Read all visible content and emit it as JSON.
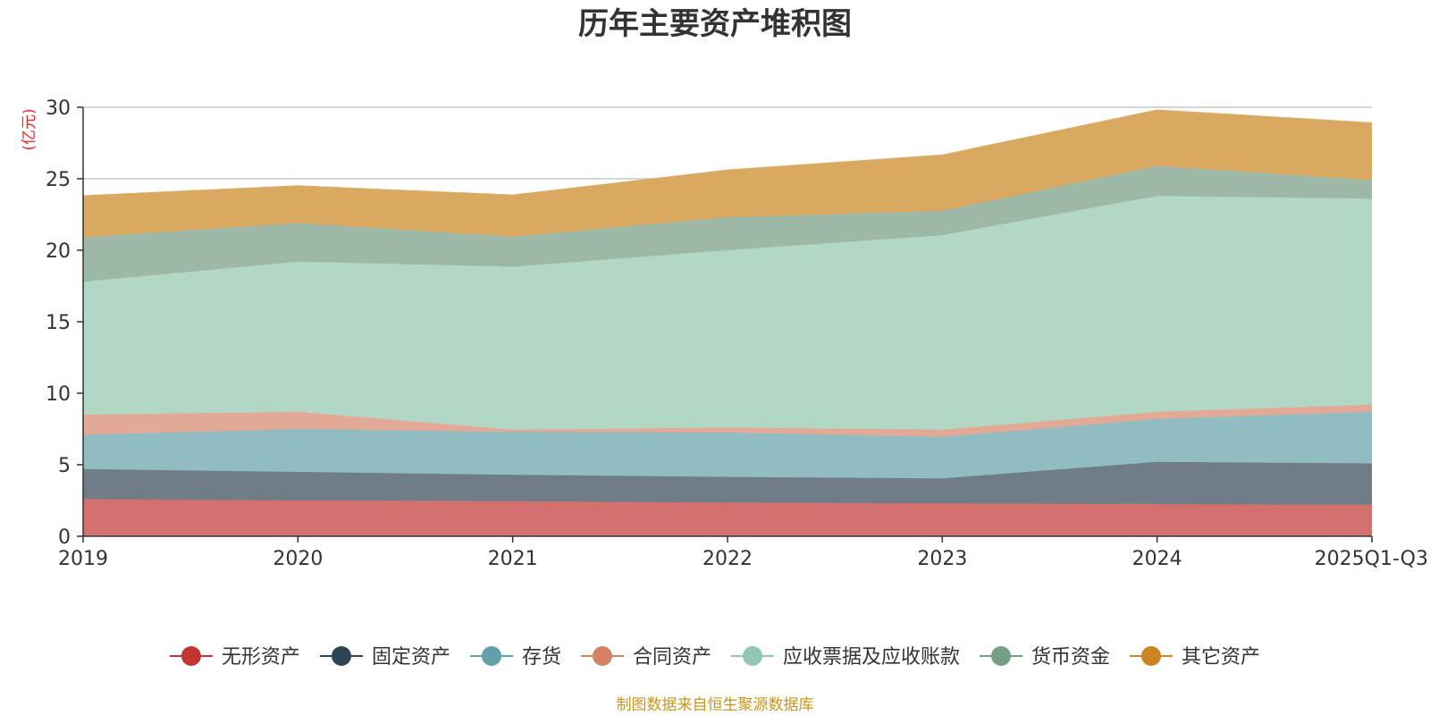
{
  "chart_data": {
    "type": "area",
    "stacked": true,
    "title": "历年主要资产堆积图",
    "unit_label": "(亿元)",
    "categories": [
      "2019",
      "2020",
      "2021",
      "2022",
      "2023",
      "2024",
      "2025Q1-Q3"
    ],
    "ylim": [
      0,
      30
    ],
    "yticks": [
      0,
      5,
      10,
      15,
      20,
      25,
      30
    ],
    "grid": true,
    "legend_position": "bottom",
    "series": [
      {
        "name": "无形资产",
        "color": "#c23531",
        "fill": "#d4706e",
        "values": [
          2.6,
          2.5,
          2.45,
          2.35,
          2.3,
          2.25,
          2.2
        ]
      },
      {
        "name": "固定资产",
        "color": "#2f4554",
        "fill": "#6f7d87",
        "values": [
          2.1,
          2.0,
          1.85,
          1.8,
          1.75,
          2.95,
          2.9
        ]
      },
      {
        "name": "存货",
        "color": "#61a0a8",
        "fill": "#90bcc2",
        "values": [
          2.4,
          3.0,
          3.0,
          3.1,
          2.9,
          3.0,
          3.6
        ]
      },
      {
        "name": "合同资产",
        "color": "#d48265",
        "fill": "#e2a996",
        "values": [
          1.4,
          1.2,
          0.15,
          0.35,
          0.5,
          0.5,
          0.5
        ]
      },
      {
        "name": "应收票据及应收账款",
        "color": "#91c7ae",
        "fill": "#b2d7c5",
        "values": [
          9.3,
          10.5,
          11.4,
          12.4,
          13.6,
          15.1,
          14.4
        ]
      },
      {
        "name": "货币资金",
        "color": "#749f83",
        "fill": "#9db8a6",
        "values": [
          3.1,
          2.7,
          2.1,
          2.3,
          1.7,
          2.1,
          1.3
        ]
      },
      {
        "name": "其它资产",
        "color": "#ca8622",
        "fill": "#d9a962",
        "values": [
          2.9,
          2.6,
          2.9,
          3.3,
          3.9,
          3.9,
          4.0
        ]
      }
    ]
  },
  "source_note": "制图数据来自恒生聚源数据库"
}
